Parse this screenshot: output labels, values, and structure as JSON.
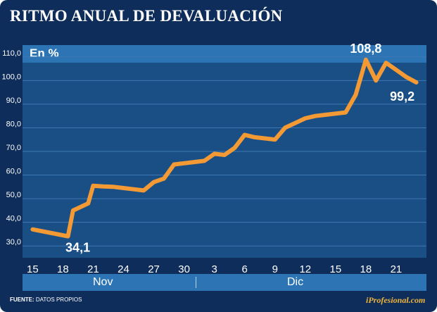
{
  "header": {
    "title": "RITMO ANUAL DE DEVALUACIÓN"
  },
  "footer": {
    "source_label": "FUENTE:",
    "source_text": "DATOS PROPIOS",
    "brand": "iProfesional.com"
  },
  "colors": {
    "frame": "#0e2d5a",
    "plot_bg": "#1a4f86",
    "band": "#2d74b5",
    "line": "#f39a35",
    "brand": "#f0b43c"
  },
  "chart_data": {
    "type": "line",
    "title": "RITMO ANUAL DE DEVALUACIÓN",
    "ylabel": "En %",
    "ylim": [
      25,
      115
    ],
    "yticks": [
      "30,0",
      "40,0",
      "50,0",
      "60,0",
      "70,0",
      "80,0",
      "90,0",
      "100,0",
      "110,0"
    ],
    "xticks": [
      "15",
      "18",
      "21",
      "24",
      "27",
      "30",
      "3",
      "6",
      "9",
      "12",
      "15",
      "18",
      "21"
    ],
    "months": [
      "Nov",
      "Dic"
    ],
    "grid": true,
    "legend": "none",
    "series": [
      {
        "x": [
          15,
          18.5,
          19,
          20.5,
          21,
          22,
          23,
          24,
          25,
          26,
          27,
          28,
          29,
          30,
          31,
          32,
          33,
          34,
          35,
          36,
          37,
          38,
          39,
          40,
          41,
          42,
          43,
          44,
          45,
          46,
          47,
          48,
          49,
          50,
          51,
          52,
          53
        ],
        "values": [
          37.0,
          34.1,
          45.0,
          48.0,
          55.5,
          55.2,
          55.0,
          54.5,
          54.0,
          53.5,
          57.0,
          58.5,
          64.5,
          65.0,
          65.5,
          66.0,
          69.0,
          68.5,
          71.5,
          77.0,
          76.0,
          75.5,
          75.0,
          80.0,
          82.0,
          84.0,
          85.0,
          85.5,
          86.0,
          86.5,
          94.0,
          108.8,
          100.0,
          107.5,
          104.5,
          101.5,
          99.2
        ]
      }
    ],
    "annotations": [
      {
        "x": 18.5,
        "value": 34.1,
        "label": "34,1"
      },
      {
        "x": 48,
        "value": 108.8,
        "label": "108,8"
      },
      {
        "x": 53,
        "value": 99.2,
        "label": "99,2"
      }
    ]
  }
}
